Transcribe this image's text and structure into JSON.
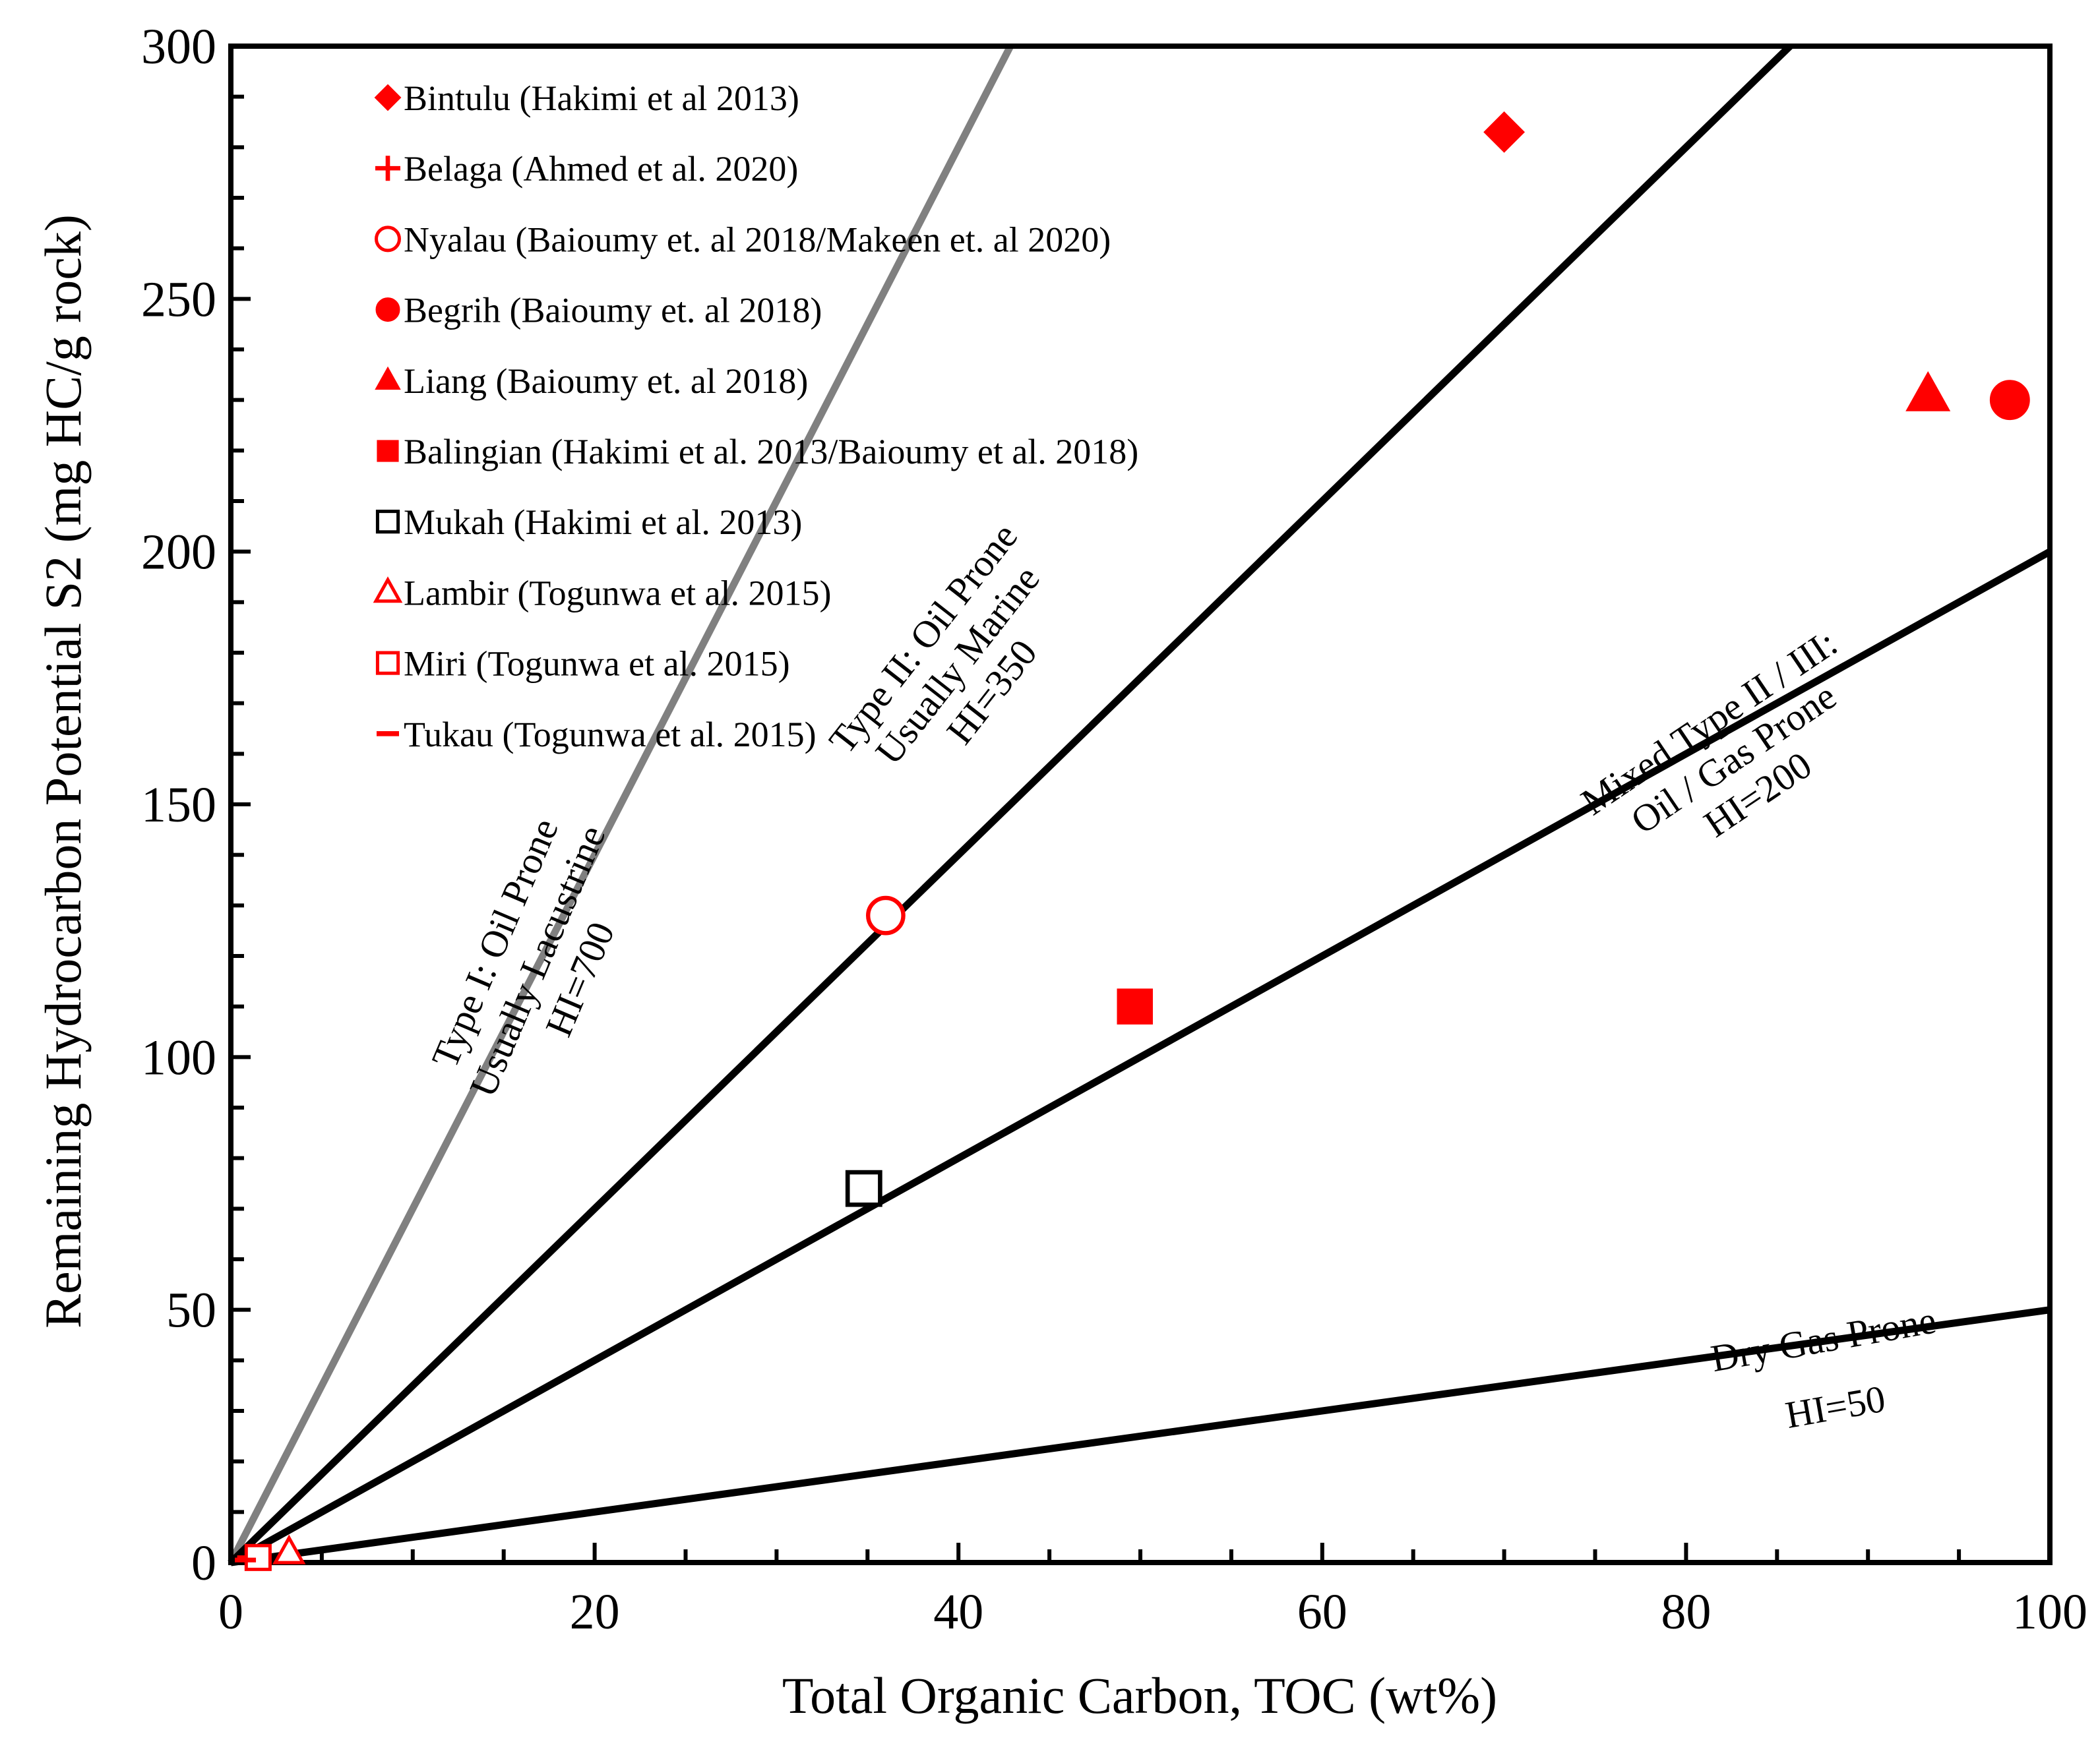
{
  "chart_data": {
    "type": "scatter",
    "xlabel": "Total Organic Carbon, TOC (wt%)",
    "ylabel": "Remaining Hydrocarbon Potential S2  (mg HC/g  rock)",
    "xlim": [
      0,
      100
    ],
    "ylim": [
      0,
      300
    ],
    "xticks": [
      "0",
      "20",
      "40",
      "60",
      "80",
      "100"
    ],
    "yticks": [
      "0",
      "50",
      "100",
      "150",
      "200",
      "250",
      "300"
    ],
    "grid": false,
    "legend_position": "top-left",
    "series": [
      {
        "name": "Bintulu (Hakimi et al 2013)",
        "marker": "diamond-filled",
        "color": "#ff0000",
        "points": [
          {
            "x": 70,
            "y": 283
          }
        ]
      },
      {
        "name": "Belaga (Ahmed et al. 2020)",
        "marker": "plus",
        "color": "#ff0000",
        "points": [
          {
            "x": 1,
            "y": 1
          }
        ]
      },
      {
        "name": "Nyalau (Baioumy et. al 2018/Makeen et. al 2020)",
        "marker": "circle-open",
        "color": "#ff0000",
        "points": [
          {
            "x": 36,
            "y": 128
          }
        ]
      },
      {
        "name": "Begrih (Baioumy et. al 2018)",
        "marker": "circle-filled",
        "color": "#ff0000",
        "points": [
          {
            "x": 97.8,
            "y": 230
          }
        ]
      },
      {
        "name": "Liang (Baioumy et. al 2018)",
        "marker": "triangle-filled",
        "color": "#ff0000",
        "points": [
          {
            "x": 93.3,
            "y": 231
          }
        ]
      },
      {
        "name": "Balingian (Hakimi et al. 2013/Baioumy et al. 2018)",
        "marker": "square-filled",
        "color": "#ff0000",
        "points": [
          {
            "x": 49.7,
            "y": 110
          }
        ]
      },
      {
        "name": "Mukah (Hakimi et al. 2013)",
        "marker": "square-open",
        "color": "#000000",
        "points": [
          {
            "x": 34.8,
            "y": 74
          }
        ]
      },
      {
        "name": "Lambir (Togunwa et al. 2015)",
        "marker": "triangle-open",
        "color": "#ff0000",
        "points": [
          {
            "x": 3.2,
            "y": 2
          }
        ]
      },
      {
        "name": "Miri (Togunwa et al. 2015)",
        "marker": "square-open",
        "color": "#ff0000",
        "points": [
          {
            "x": 1.5,
            "y": 1
          }
        ]
      },
      {
        "name": "Tukau (Togunwa et al. 2015)",
        "marker": "dash",
        "color": "#ff0000",
        "points": [
          {
            "x": 0.8,
            "y": 0.5
          }
        ]
      }
    ],
    "reference_lines": [
      {
        "name": "HI=700",
        "slope": 7.0,
        "color": "#808080",
        "label_lines": [
          "Type I: Oil Prone",
          "Usually Lacustrine",
          "HI=700"
        ]
      },
      {
        "name": "HI=350",
        "slope": 3.5,
        "color": "#000000",
        "label_lines": [
          "Type II: Oil Prone",
          "Usually Marine",
          "HI=350"
        ]
      },
      {
        "name": "HI=200",
        "slope": 2.0,
        "color": "#000000",
        "label_lines": [
          "Mixed Type II / III:",
          "Oil / Gas Prone",
          "HI=200"
        ]
      },
      {
        "name": "HI=50",
        "slope": 0.5,
        "color": "#000000",
        "label_lines": [
          "Dry Gas Prone",
          "HI=50"
        ]
      }
    ]
  }
}
